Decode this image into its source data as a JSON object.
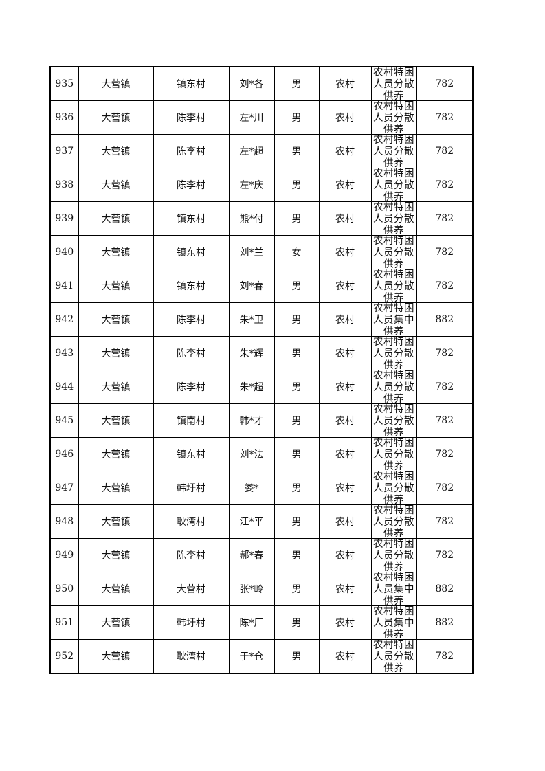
{
  "rows": [
    {
      "no": "935",
      "town": "大营镇",
      "village": "镇东村",
      "name": "刘*各",
      "gender": "男",
      "type": "农村",
      "category": "农村特困人员分散供养",
      "amount": "782"
    },
    {
      "no": "936",
      "town": "大营镇",
      "village": "陈李村",
      "name": "左*川",
      "gender": "男",
      "type": "农村",
      "category": "农村特困人员分散供养",
      "amount": "782"
    },
    {
      "no": "937",
      "town": "大营镇",
      "village": "陈李村",
      "name": "左*超",
      "gender": "男",
      "type": "农村",
      "category": "农村特困人员分散供养",
      "amount": "782"
    },
    {
      "no": "938",
      "town": "大营镇",
      "village": "陈李村",
      "name": "左*庆",
      "gender": "男",
      "type": "农村",
      "category": "农村特困人员分散供养",
      "amount": "782"
    },
    {
      "no": "939",
      "town": "大营镇",
      "village": "镇东村",
      "name": "熊*付",
      "gender": "男",
      "type": "农村",
      "category": "农村特困人员分散供养",
      "amount": "782"
    },
    {
      "no": "940",
      "town": "大营镇",
      "village": "镇东村",
      "name": "刘*兰",
      "gender": "女",
      "type": "农村",
      "category": "农村特困人员分散供养",
      "amount": "782"
    },
    {
      "no": "941",
      "town": "大营镇",
      "village": "镇东村",
      "name": "刘*春",
      "gender": "男",
      "type": "农村",
      "category": "农村特困人员分散供养",
      "amount": "782"
    },
    {
      "no": "942",
      "town": "大营镇",
      "village": "陈李村",
      "name": "朱*卫",
      "gender": "男",
      "type": "农村",
      "category": "农村特困人员集中供养",
      "amount": "882"
    },
    {
      "no": "943",
      "town": "大营镇",
      "village": "陈李村",
      "name": "朱*辉",
      "gender": "男",
      "type": "农村",
      "category": "农村特困人员分散供养",
      "amount": "782"
    },
    {
      "no": "944",
      "town": "大营镇",
      "village": "陈李村",
      "name": "朱*超",
      "gender": "男",
      "type": "农村",
      "category": "农村特困人员分散供养",
      "amount": "782"
    },
    {
      "no": "945",
      "town": "大营镇",
      "village": "镇南村",
      "name": "韩*才",
      "gender": "男",
      "type": "农村",
      "category": "农村特困人员分散供养",
      "amount": "782"
    },
    {
      "no": "946",
      "town": "大营镇",
      "village": "镇东村",
      "name": "刘*法",
      "gender": "男",
      "type": "农村",
      "category": "农村特困人员分散供养",
      "amount": "782"
    },
    {
      "no": "947",
      "town": "大营镇",
      "village": "韩圩村",
      "name": "娄*",
      "gender": "男",
      "type": "农村",
      "category": "农村特困人员分散供养",
      "amount": "782"
    },
    {
      "no": "948",
      "town": "大营镇",
      "village": "耿湾村",
      "name": "江*平",
      "gender": "男",
      "type": "农村",
      "category": "农村特困人员分散供养",
      "amount": "782"
    },
    {
      "no": "949",
      "town": "大营镇",
      "village": "陈李村",
      "name": "郝*春",
      "gender": "男",
      "type": "农村",
      "category": "农村特困人员分散供养",
      "amount": "782"
    },
    {
      "no": "950",
      "town": "大营镇",
      "village": "大营村",
      "name": "张*岭",
      "gender": "男",
      "type": "农村",
      "category": "农村特困人员集中供养",
      "amount": "882"
    },
    {
      "no": "951",
      "town": "大营镇",
      "village": "韩圩村",
      "name": "陈*厂",
      "gender": "男",
      "type": "农村",
      "category": "农村特困人员集中供养",
      "amount": "882"
    },
    {
      "no": "952",
      "town": "大营镇",
      "village": "耿湾村",
      "name": "于*仓",
      "gender": "男",
      "type": "农村",
      "category": "农村特困人员分散供养",
      "amount": "782"
    }
  ]
}
